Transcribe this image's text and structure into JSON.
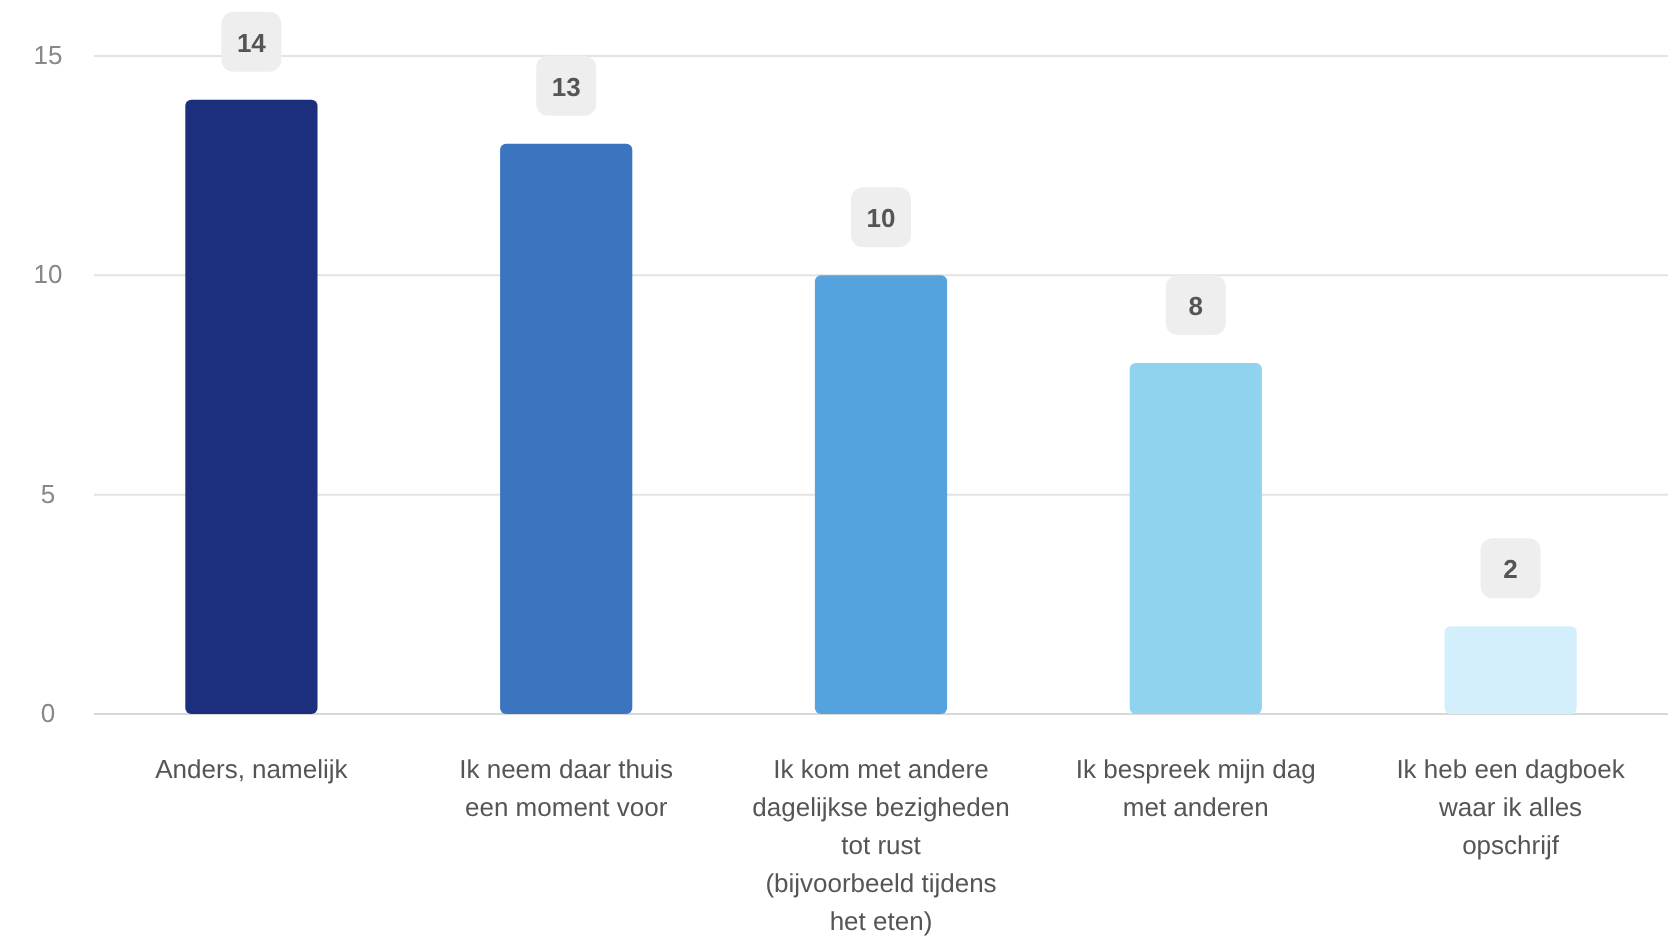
{
  "chart_data": {
    "type": "bar",
    "categories": [
      "Anders, namelijk",
      "Ik neem daar thuis een moment voor",
      "Ik kom met andere dagelijkse bezigheden tot rust (bijvoorbeeld tijdens het eten)",
      "Ik bespreek mijn dag met anderen",
      "Ik heb een dagboek waar ik alles opschrijf"
    ],
    "values": [
      14,
      13,
      10,
      8,
      2
    ],
    "colors": [
      "#1b2f7c",
      "#3b74bf",
      "#55a3de",
      "#8fd3ef",
      "#d3effb"
    ],
    "ylim": [
      0,
      15
    ],
    "yticks": [
      0,
      5,
      10,
      15
    ],
    "grid": "y",
    "data_labels": true
  }
}
